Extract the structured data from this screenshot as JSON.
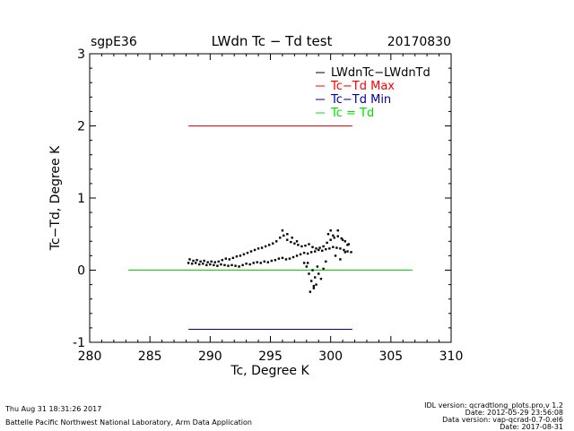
{
  "header": {
    "site": "sgpE36",
    "title": "LWdn Tc − Td test",
    "date": "20170830"
  },
  "footer": {
    "timestamp": "Thu Aug 31 18:31:26 2017",
    "org": "Battelle Pacific Northwest National Laboratory, Arm Data Application",
    "idl_version": "IDL version: qcradtlong_plots.pro,v 1.2",
    "code_date": "Date: 2012-05-29 23:56:08",
    "data_version": "Data version: vap-qcrad-0.7-0.el6",
    "data_date": "Date: 2017-08-31"
  },
  "colors": {
    "data": "#000000",
    "max": "#ff0000",
    "min": "#0000a0",
    "zero": "#00e000"
  },
  "chart_data": {
    "type": "scatter",
    "xlabel": "Tc, Degree K",
    "ylabel": "Tc−Td, Degree K",
    "xlim": [
      280,
      310
    ],
    "ylim": [
      -1,
      3
    ],
    "xticks": [
      280,
      285,
      290,
      295,
      300,
      305,
      310
    ],
    "yticks": [
      -1,
      0,
      1,
      2,
      3
    ],
    "grid": false,
    "legend_position": "top-right",
    "legend": [
      {
        "label": "LWdnTc−LWdnTd",
        "color": "#000000"
      },
      {
        "label": "Tc−Td Max",
        "color": "#ff0000"
      },
      {
        "label": "Tc−Td Min",
        "color": "#0000a0"
      },
      {
        "label": "Tc = Td",
        "color": "#00e000"
      }
    ],
    "reference_lines": [
      {
        "name": "Tc−Td Max",
        "x": [
          288.2,
          301.8
        ],
        "y": [
          2.0,
          2.0
        ],
        "color": "#ff0000"
      },
      {
        "name": "Tc−Td Min",
        "x": [
          288.2,
          301.8
        ],
        "y": [
          -0.82,
          -0.82
        ],
        "color": "#0000a0"
      },
      {
        "name": "Tc = Td",
        "x": [
          283.2,
          306.8
        ],
        "y": [
          0.0,
          0.0
        ],
        "color": "#00e000"
      }
    ],
    "series": [
      {
        "name": "LWdnTc−LWdnTd",
        "x": [
          288.2,
          288.5,
          288.8,
          289.1,
          289.4,
          289.7,
          290.0,
          290.3,
          290.6,
          290.9,
          291.2,
          291.5,
          291.8,
          292.1,
          292.4,
          292.7,
          293.0,
          293.3,
          293.6,
          293.9,
          294.2,
          294.5,
          294.8,
          295.1,
          295.4,
          295.7,
          296.0,
          296.3,
          296.6,
          296.9,
          297.2,
          297.5,
          297.8,
          298.1,
          298.4,
          298.7,
          299.0,
          299.3,
          299.6,
          299.9,
          300.2,
          300.5,
          300.8,
          301.1,
          301.4,
          301.7,
          288.3,
          288.6,
          288.9,
          289.2,
          289.5,
          289.8,
          290.1,
          290.4,
          290.7,
          291.0,
          291.3,
          291.6,
          291.9,
          292.2,
          292.5,
          292.8,
          293.1,
          293.4,
          293.7,
          294.0,
          294.3,
          294.6,
          294.9,
          295.2,
          295.5,
          295.8,
          296.1,
          296.4,
          296.7,
          297.0,
          297.3,
          297.6,
          297.9,
          298.2,
          298.5,
          298.8,
          299.1,
          299.4,
          299.7,
          300.0,
          300.3,
          300.6,
          300.9,
          301.2,
          301.5,
          297.8,
          298.0,
          298.2,
          298.4,
          298.6,
          298.8,
          299.0,
          298.3,
          298.7,
          298.5,
          298.9,
          299.2,
          298.1,
          298.6,
          299.4,
          296.0,
          296.4,
          296.8,
          297.2,
          299.8,
          300.2,
          300.6,
          301.0,
          301.4,
          300.4,
          300.8,
          301.2,
          299.6,
          300.0
        ],
        "y": [
          0.1,
          0.09,
          0.1,
          0.08,
          0.09,
          0.07,
          0.08,
          0.07,
          0.06,
          0.08,
          0.07,
          0.06,
          0.07,
          0.06,
          0.05,
          0.07,
          0.09,
          0.08,
          0.1,
          0.11,
          0.1,
          0.12,
          0.11,
          0.13,
          0.14,
          0.16,
          0.17,
          0.15,
          0.16,
          0.18,
          0.2,
          0.22,
          0.24,
          0.23,
          0.25,
          0.26,
          0.28,
          0.27,
          0.29,
          0.3,
          0.32,
          0.31,
          0.3,
          0.28,
          0.26,
          0.25,
          0.15,
          0.13,
          0.14,
          0.12,
          0.13,
          0.11,
          0.12,
          0.11,
          0.12,
          0.14,
          0.16,
          0.15,
          0.17,
          0.19,
          0.2,
          0.22,
          0.24,
          0.26,
          0.28,
          0.3,
          0.31,
          0.33,
          0.35,
          0.37,
          0.4,
          0.45,
          0.48,
          0.42,
          0.39,
          0.37,
          0.35,
          0.33,
          0.34,
          0.36,
          0.32,
          0.3,
          0.31,
          0.33,
          0.38,
          0.42,
          0.45,
          0.47,
          0.44,
          0.4,
          0.36,
          0.1,
          0.05,
          -0.05,
          -0.15,
          -0.25,
          -0.2,
          -0.05,
          -0.3,
          -0.1,
          0.0,
          0.05,
          -0.12,
          0.1,
          -0.22,
          0.02,
          0.55,
          0.5,
          0.45,
          0.4,
          0.5,
          0.48,
          0.55,
          0.42,
          0.35,
          0.2,
          0.15,
          0.25,
          0.12,
          0.55
        ]
      }
    ]
  }
}
